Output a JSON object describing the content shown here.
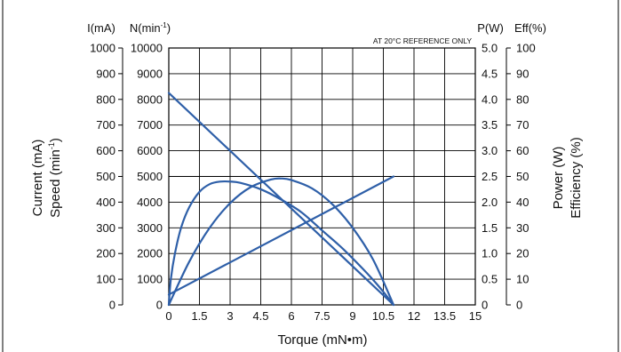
{
  "chart_data": {
    "type": "line",
    "axis_unit_labels": {
      "current": "I(mA)",
      "speed": "N(min",
      "speed_exp": "-1",
      "speed_close": ")",
      "power": "P(W)",
      "efficiency": "Eff(%)"
    },
    "ylabel_left_outer": "Current (mA)",
    "ylabel_left_inner": "Speed (min",
    "ylabel_left_inner_exp": "-1",
    "ylabel_left_inner_close": ")",
    "ylabel_right_inner": "Power (W)",
    "ylabel_right_outer": "Efficiency (%)",
    "xlabel": "Torque (mN•m)",
    "annotation": "AT 20°C REFERENCE ONLY",
    "grid": true,
    "x_axis": {
      "range": [
        0,
        15
      ],
      "ticks": [
        0,
        1.5,
        3,
        4.5,
        6,
        7.5,
        9,
        10.5,
        12,
        13.5,
        15
      ],
      "tick_labels": [
        "0",
        "1.5",
        "3",
        "4.5",
        "6",
        "7.5",
        "9",
        "10.5",
        "12",
        "13.5",
        "15"
      ]
    },
    "y_current": {
      "range": [
        0,
        1000
      ],
      "tick_labels": [
        "0",
        "100",
        "200",
        "300",
        "400",
        "500",
        "600",
        "700",
        "800",
        "900",
        "1000"
      ]
    },
    "y_speed": {
      "range": [
        0,
        10000
      ],
      "tick_labels": [
        "0",
        "1000",
        "2000",
        "3000",
        "4000",
        "5000",
        "6000",
        "7000",
        "8000",
        "9000",
        "10000"
      ]
    },
    "y_power": {
      "range": [
        0,
        5.0
      ],
      "tick_labels": [
        "0",
        "0.5",
        "1.0",
        "1.5",
        "2.0",
        "2.5",
        "3.0",
        "3.5",
        "4.0",
        "4.5",
        "5.0"
      ]
    },
    "y_efficiency": {
      "range": [
        0,
        100
      ],
      "tick_labels": [
        "0",
        "10",
        "20",
        "30",
        "40",
        "50",
        "60",
        "70",
        "80",
        "90",
        "100"
      ]
    },
    "line_color": "#2e5fa8",
    "grid_color": "#000000",
    "series": [
      {
        "key": "speed",
        "axis": "y_speed",
        "points": [
          [
            0,
            8250
          ],
          [
            11,
            0
          ]
        ]
      },
      {
        "key": "current",
        "axis": "y_current",
        "points": [
          [
            0,
            40
          ],
          [
            11,
            500
          ]
        ]
      },
      {
        "key": "efficiency",
        "axis": "y_efficiency",
        "points": [
          [
            0,
            0
          ],
          [
            0.1,
            10
          ],
          [
            0.3,
            20
          ],
          [
            0.6,
            30
          ],
          [
            1.0,
            38
          ],
          [
            1.5,
            44
          ],
          [
            2.0,
            47
          ],
          [
            2.5,
            48
          ],
          [
            3.0,
            48
          ],
          [
            3.5,
            47.5
          ],
          [
            4.5,
            45
          ],
          [
            5.5,
            41
          ],
          [
            6.5,
            36
          ],
          [
            7.5,
            29
          ],
          [
            8.5,
            22
          ],
          [
            9.5,
            14
          ],
          [
            10.3,
            7
          ],
          [
            11,
            0
          ]
        ]
      },
      {
        "key": "power",
        "axis": "y_power",
        "points": [
          [
            0,
            0
          ],
          [
            1.0,
            0.84
          ],
          [
            2.0,
            1.5
          ],
          [
            3.0,
            1.98
          ],
          [
            4.0,
            2.29
          ],
          [
            5.0,
            2.44
          ],
          [
            5.5,
            2.46
          ],
          [
            6.0,
            2.43
          ],
          [
            7.0,
            2.27
          ],
          [
            8.0,
            1.96
          ],
          [
            9.0,
            1.5
          ],
          [
            10.0,
            0.88
          ],
          [
            11,
            0
          ]
        ]
      }
    ]
  }
}
